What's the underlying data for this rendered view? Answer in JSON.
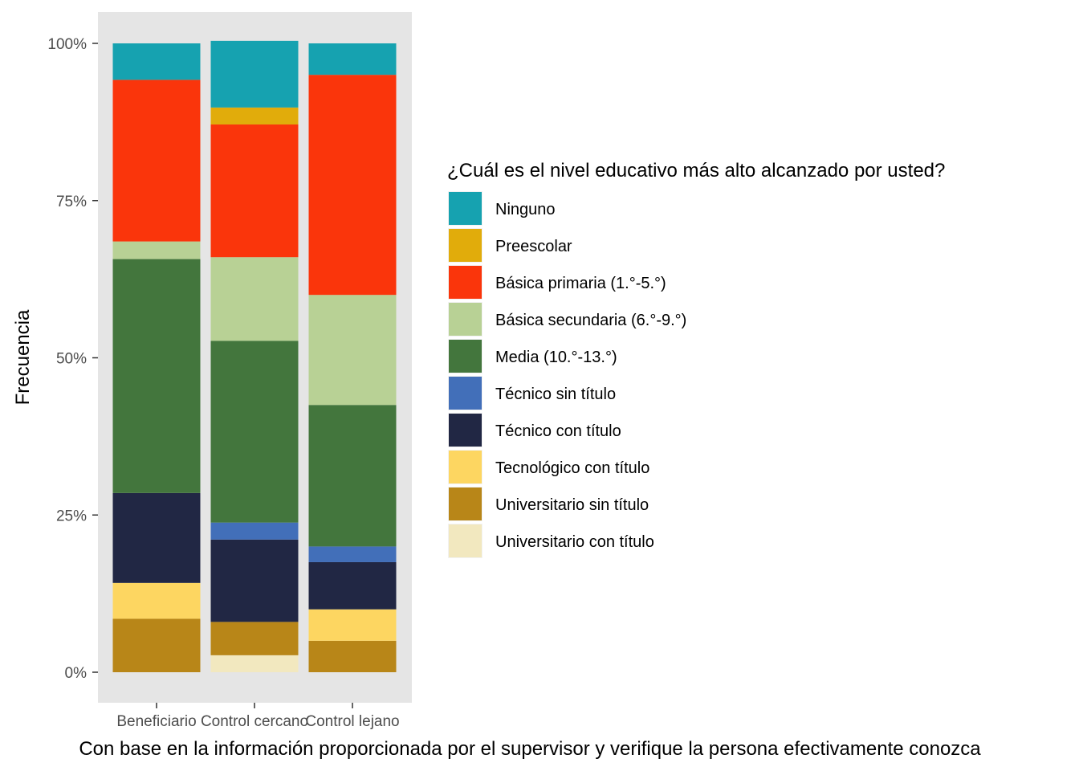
{
  "chart_data": {
    "type": "bar",
    "stacked": true,
    "normalized": true,
    "categories": [
      "Beneficiario",
      "Control cercano",
      "Control lejano"
    ],
    "xlabel": "Con base en la información proporcionada por el supervisor y verifique la persona efectivamente conozca",
    "ylabel": "Frecuencia",
    "ylim": [
      0,
      1
    ],
    "yticks": [
      {
        "value": 0,
        "label": "0%"
      },
      {
        "value": 0.25,
        "label": "25%"
      },
      {
        "value": 0.5,
        "label": "50%"
      },
      {
        "value": 0.75,
        "label": "75%"
      },
      {
        "value": 1,
        "label": "100%"
      }
    ],
    "legend_title": "¿Cuál es el nivel educativo más alto alcanzado por usted?",
    "legend_position": "right",
    "grid": false,
    "panel_background": "#e5e5e5",
    "series": [
      {
        "name": "Ninguno",
        "color": "#16a2b0",
        "values": [
          0.058,
          0.106,
          0.05
        ]
      },
      {
        "name": "Preescolar",
        "color": "#e1ac0b",
        "values": [
          0,
          0.027,
          0
        ]
      },
      {
        "name": "Básica primaria (1.°-5.°)",
        "color": "#fa350b",
        "values": [
          0.257,
          0.211,
          0.35
        ]
      },
      {
        "name": "Básica secundaria (6.°-9.°)",
        "color": "#b8d195",
        "values": [
          0.028,
          0.133,
          0.175
        ]
      },
      {
        "name": "Media (10.°-13.°)",
        "color": "#43763d",
        "values": [
          0.372,
          0.289,
          0.225
        ]
      },
      {
        "name": "Técnico sin título",
        "color": "#426fb9",
        "values": [
          0,
          0.027,
          0.025
        ]
      },
      {
        "name": "Técnico con título",
        "color": "#212744",
        "values": [
          0.143,
          0.131,
          0.075
        ]
      },
      {
        "name": "Tecnológico con título",
        "color": "#fdd661",
        "values": [
          0.057,
          0,
          0.05
        ]
      },
      {
        "name": "Universitario sin título",
        "color": "#b88618",
        "values": [
          0.085,
          0.053,
          0.05
        ]
      },
      {
        "name": "Universitario con título",
        "color": "#f2e8bf",
        "values": [
          0,
          0.027,
          0
        ]
      }
    ]
  }
}
